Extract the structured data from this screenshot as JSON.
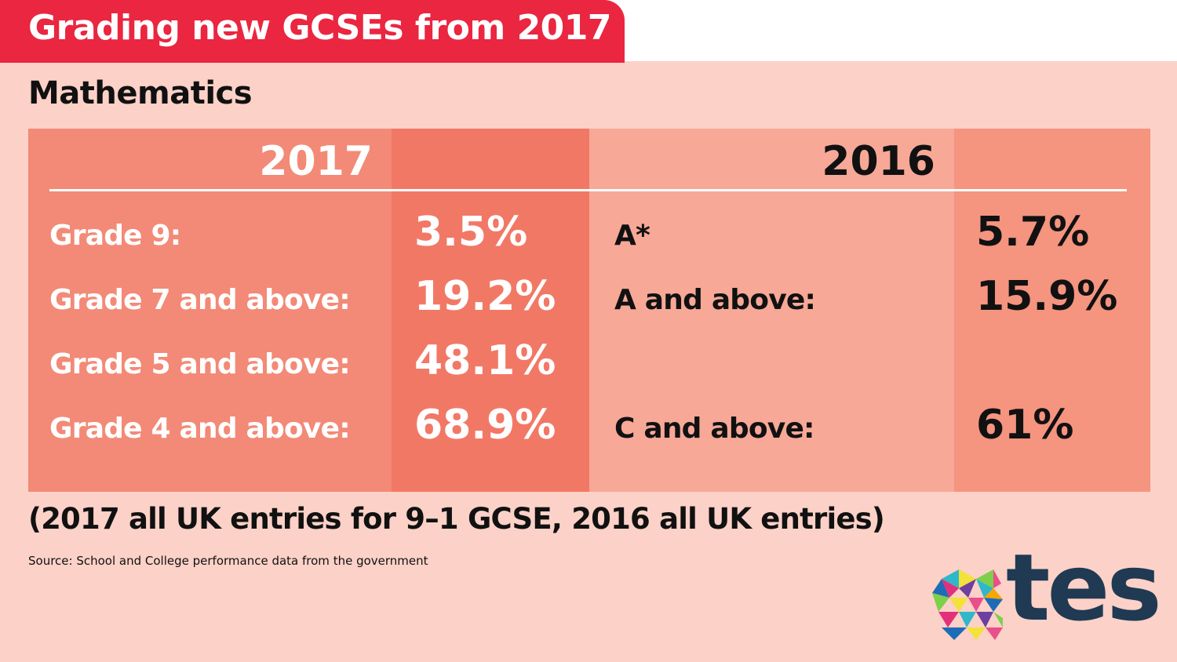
{
  "title": "Grading new GCSEs from 2017",
  "subject": "Mathematics",
  "columns": {
    "y2017": "2017",
    "y2016": "2016"
  },
  "rows_2017": [
    {
      "label": "Grade 9:",
      "value": "3.5%"
    },
    {
      "label": "Grade 7 and above:",
      "value": "19.2%"
    },
    {
      "label": "Grade 5 and above:",
      "value": "48.1%"
    },
    {
      "label": "Grade 4 and above:",
      "value": "68.9%"
    }
  ],
  "rows_2016": [
    {
      "label": "A*",
      "value": "5.7%"
    },
    {
      "label": "A and above:",
      "value": "15.9%"
    },
    {
      "label": "C and above:",
      "value": "61%"
    }
  ],
  "note": "(2017 all UK entries for 9–1 GCSE, 2016 all UK entries)",
  "source": "Source: School and College performance data from the government",
  "logo": {
    "wordmark": "tes",
    "color": "#1f3a52"
  },
  "colors": {
    "title_bar": "#ea2640",
    "background": "#fcd1c7",
    "col_2017_label": "#f28a77",
    "col_2017_value": "#f27866",
    "col_2016_label": "#f7a897",
    "col_2016_value": "#f5947f"
  }
}
